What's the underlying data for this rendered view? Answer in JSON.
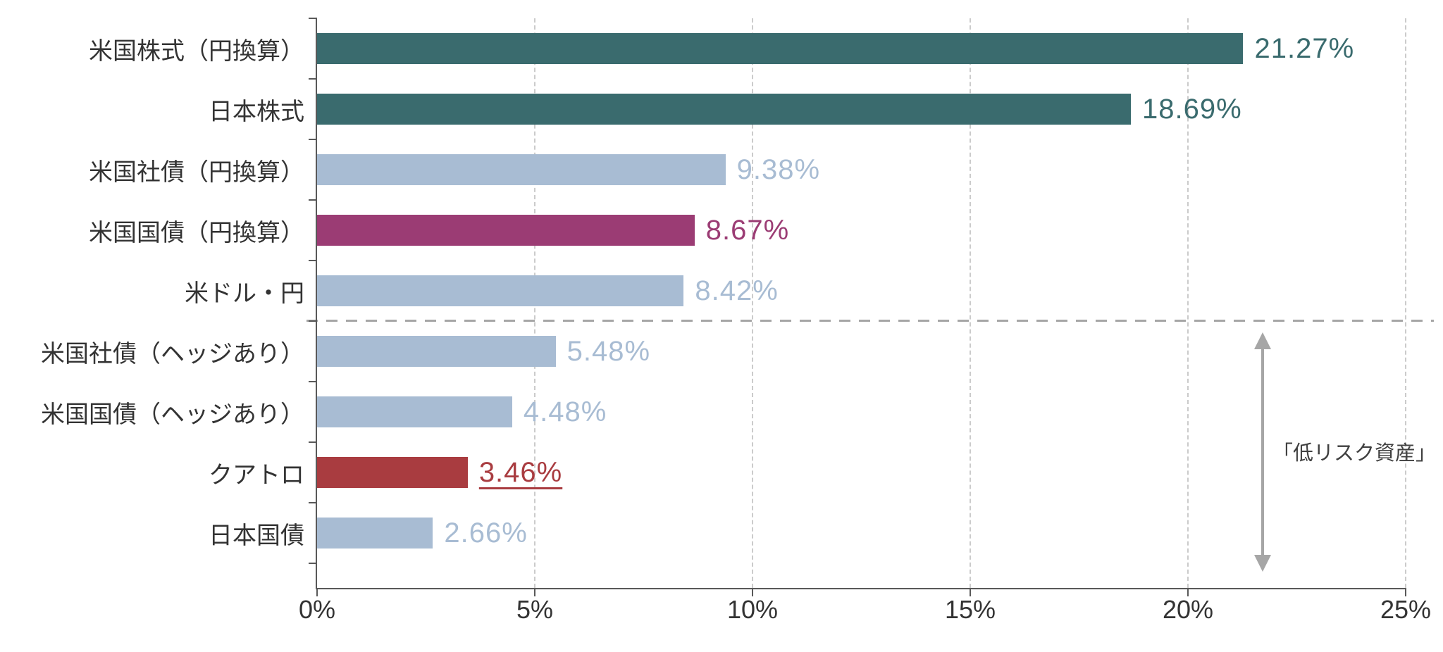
{
  "chart_data": {
    "type": "bar",
    "orientation": "horizontal",
    "title": "",
    "xlabel": "",
    "ylabel": "",
    "xlim": [
      0,
      25
    ],
    "grid": "vertical-dashed",
    "x_tick_values": [
      0,
      5,
      10,
      15,
      20,
      25
    ],
    "x_tick_labels": [
      "0%",
      "5%",
      "10%",
      "15%",
      "20%",
      "25%"
    ],
    "categories": [
      "米国株式（円換算）",
      "日本株式",
      "米国社債（円換算）",
      "米国国債（円換算）",
      "米ドル・円",
      "米国社債（ヘッジあり）",
      "米国国債（ヘッジあり）",
      "クアトロ",
      "日本国債"
    ],
    "values": [
      21.27,
      18.69,
      9.38,
      8.67,
      8.42,
      5.48,
      4.48,
      3.46,
      2.66
    ],
    "value_labels": [
      "21.27%",
      "18.69%",
      "9.38%",
      "8.67%",
      "8.42%",
      "5.48%",
      "4.48%",
      "3.46%",
      "2.66%"
    ],
    "bar_color_keys": [
      "teal",
      "teal",
      "blue_gray",
      "purple",
      "blue_gray",
      "blue_gray",
      "blue_gray",
      "red",
      "blue_gray"
    ],
    "underlined_value_index": 7,
    "divider_after_category_index": 4,
    "annotation": {
      "text": "「低リスク資産」",
      "arrow": "double-vertical"
    }
  },
  "colors": {
    "teal": "#3A6B6E",
    "blue_gray": "#A8BCD3",
    "purple": "#9B3C74",
    "red": "#A93C40",
    "axis": "#595959",
    "tick_label": "#333333",
    "category_label": "#333333",
    "gridline": "#cbcbcb",
    "divider": "#a6a6a6",
    "arrow": "#a6a6a6",
    "annotation_text": "#404040"
  }
}
